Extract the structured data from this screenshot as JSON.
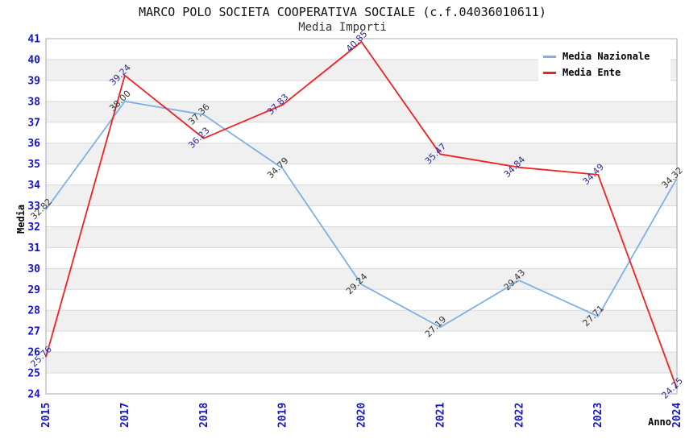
{
  "chart_data": {
    "type": "line",
    "title": "MARCO POLO SOCIETA COOPERATIVA SOCIALE (c.f.04036010611)",
    "subtitle": "Media Importi",
    "xlabel": "Anno",
    "ylabel": "Media",
    "ylim": [
      24,
      41
    ],
    "y_tick_step": 1,
    "grid": "horizontal-bands-alternating",
    "legend_position": "top-right",
    "categories": [
      "2015",
      "2017",
      "2018",
      "2019",
      "2020",
      "2021",
      "2022",
      "2023",
      "2024"
    ],
    "series": [
      {
        "name": "Media Nazionale",
        "color": "#7db0e6",
        "label_color": "#333333",
        "values": [
          32.82,
          38.0,
          37.36,
          34.79,
          29.24,
          27.19,
          29.43,
          27.71,
          34.32
        ]
      },
      {
        "name": "Media Ente",
        "color": "#ee2222",
        "label_color": "#2a2aa0",
        "values": [
          25.76,
          39.24,
          36.23,
          37.83,
          40.85,
          35.47,
          34.84,
          34.49,
          24.25
        ]
      }
    ],
    "colors": {
      "band_gray": "#f0f0f0",
      "band_white": "#ffffff",
      "gridline": "#dadada",
      "plot_border": "#aaaaaa",
      "tick_label": "#1414cc"
    }
  }
}
